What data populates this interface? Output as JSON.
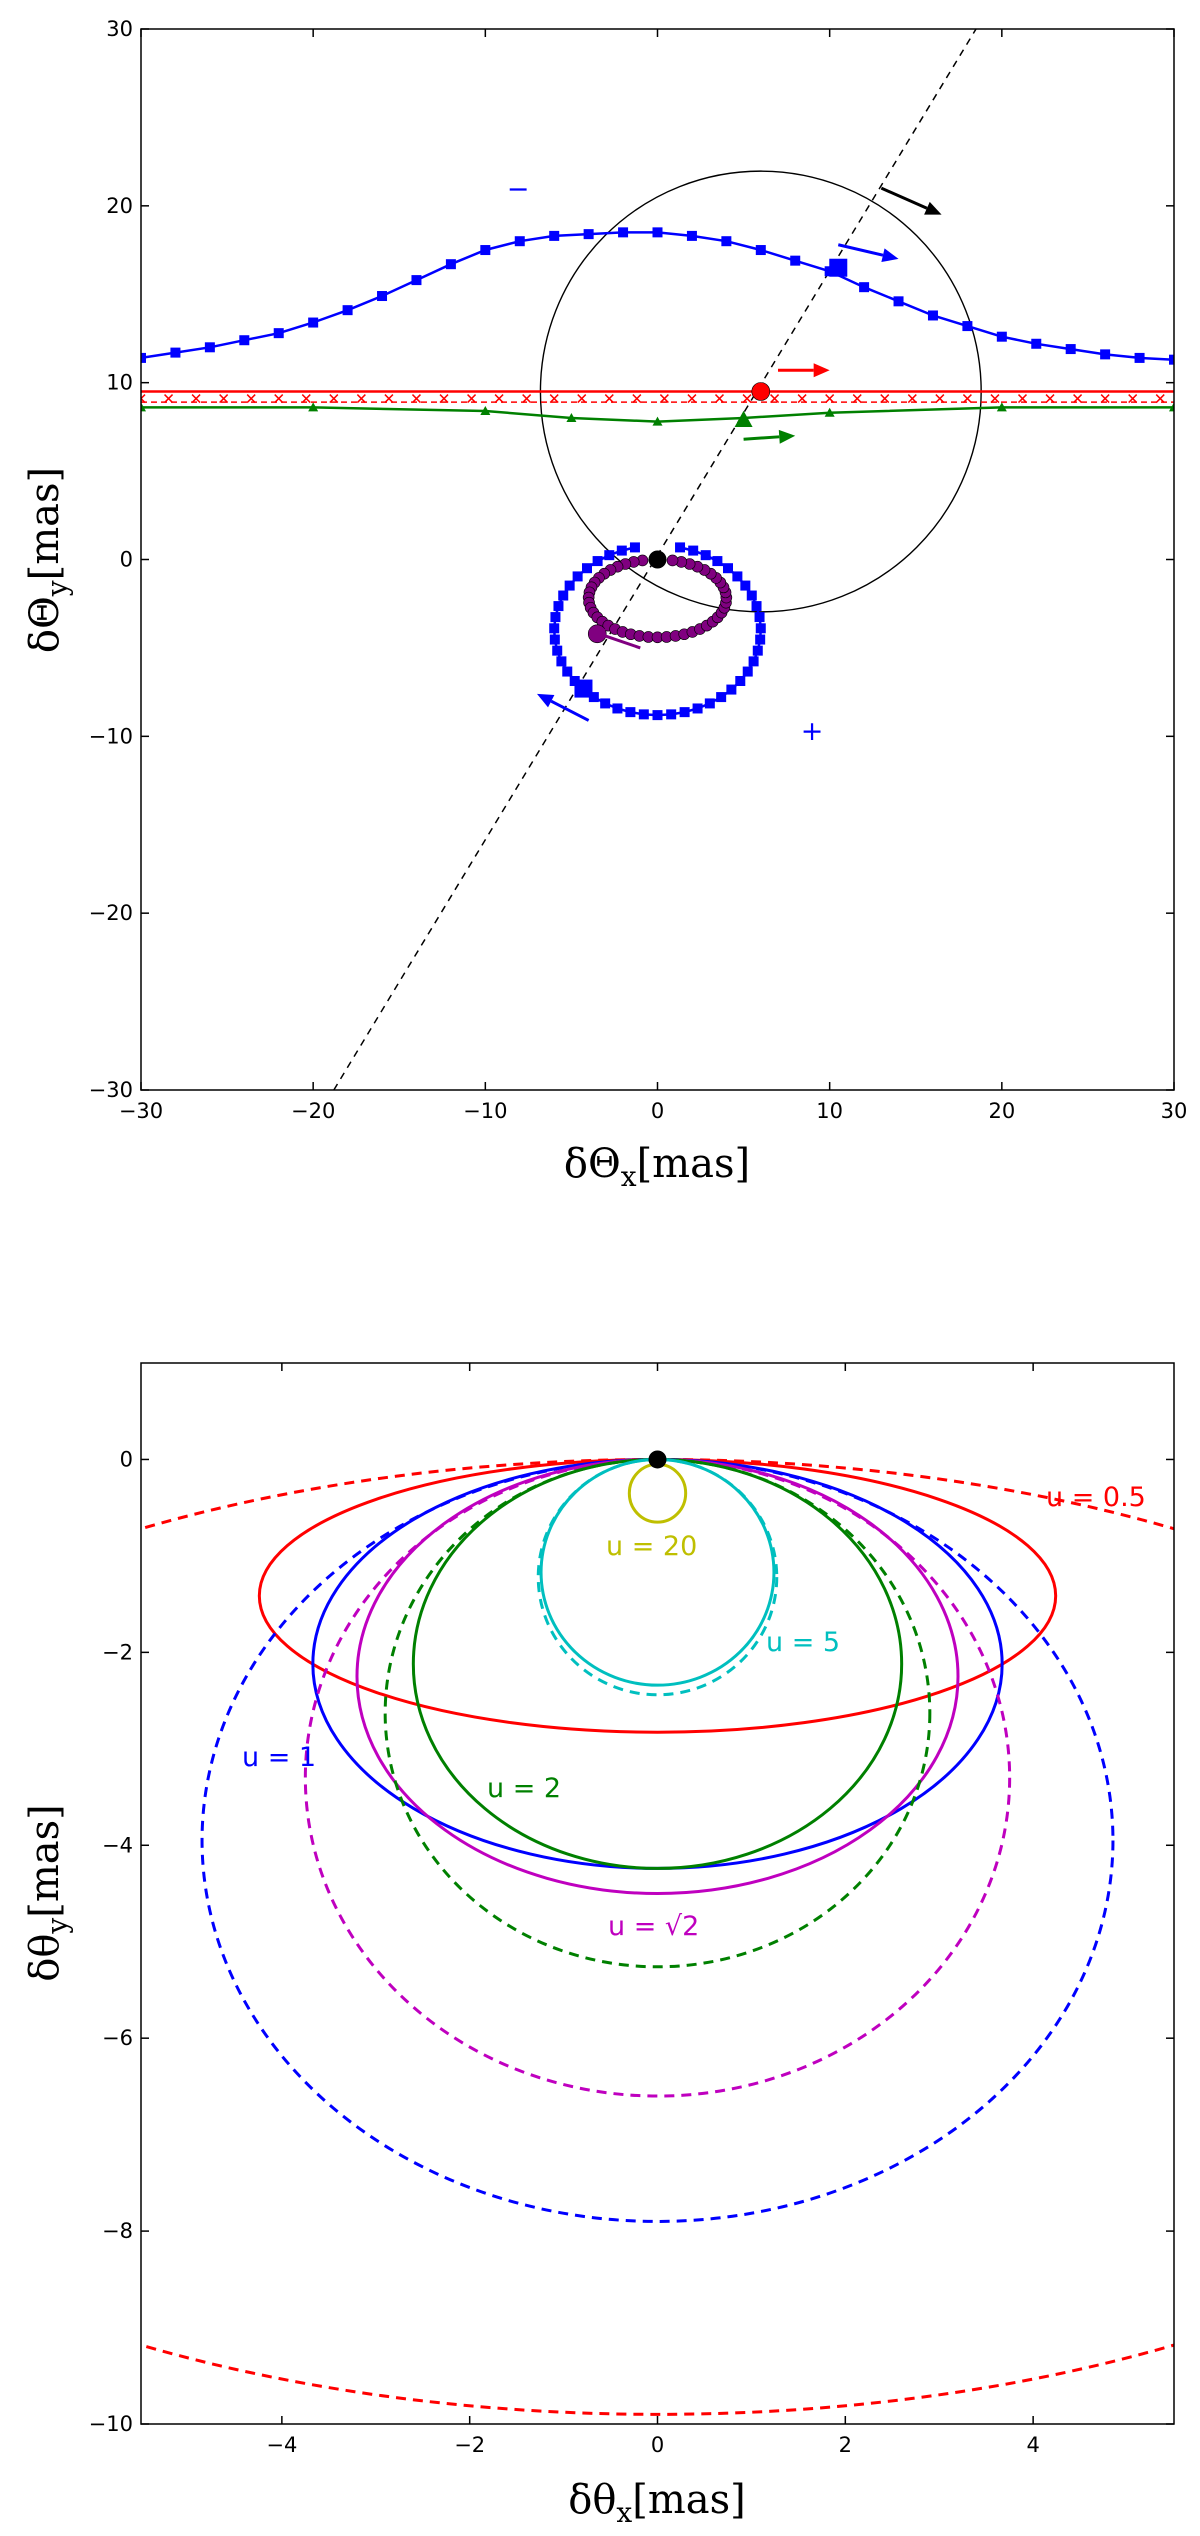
{
  "chart_data": [
    {
      "type": "line",
      "xlabel": "δΘ_x [mas]",
      "ylabel": "δΘ_y [mas]",
      "xlim": [
        -30,
        30
      ],
      "ylim": [
        -30,
        30
      ],
      "xticks": [
        -30,
        -20,
        -10,
        0,
        10,
        20,
        30
      ],
      "yticks": [
        -30,
        -20,
        -10,
        0,
        10,
        20,
        30
      ],
      "grid": false,
      "lens_position": [
        0,
        0
      ],
      "sign_labels": {
        "minus": "−",
        "plus": "+"
      },
      "circle": {
        "center": [
          6,
          9.5
        ],
        "radius": 12.8,
        "color": "#000000"
      },
      "lens_path_line": {
        "through": [
          [
            -18.8,
            -30
          ],
          [
            18.5,
            30
          ]
        ],
        "style": "dashed",
        "color": "#000000"
      },
      "series": [
        {
          "color": "#0000ff",
          "marker": "square",
          "curve": "major image (+)",
          "points": [
            [
              -30,
              11.4
            ],
            [
              -28,
              11.7
            ],
            [
              -26,
              12.0
            ],
            [
              -24,
              12.4
            ],
            [
              -22,
              12.8
            ],
            [
              -20,
              13.4
            ],
            [
              -18,
              14.1
            ],
            [
              -16,
              14.9
            ],
            [
              -14,
              15.8
            ],
            [
              -12,
              16.7
            ],
            [
              -10,
              17.5
            ],
            [
              -8,
              18.0
            ],
            [
              -6,
              18.3
            ],
            [
              -4,
              18.4
            ],
            [
              -2,
              18.5
            ],
            [
              0,
              18.5
            ],
            [
              2,
              18.3
            ],
            [
              4,
              18.0
            ],
            [
              6,
              17.5
            ],
            [
              8,
              16.9
            ],
            [
              10,
              16.3
            ],
            [
              12,
              15.4
            ],
            [
              14,
              14.6
            ],
            [
              16,
              13.8
            ],
            [
              18,
              13.2
            ],
            [
              20,
              12.6
            ],
            [
              22,
              12.2
            ],
            [
              24,
              11.9
            ],
            [
              26,
              11.6
            ],
            [
              28,
              11.4
            ],
            [
              30,
              11.3
            ]
          ]
        },
        {
          "color": "#ff0000",
          "marker": "x",
          "curve": "unlensed source",
          "points": [
            [
              -30,
              9.5
            ],
            [
              30,
              9.5
            ]
          ]
        },
        {
          "color": "#008000",
          "marker": "triangle",
          "curve": "centroid",
          "points": [
            [
              -30,
              8.6
            ],
            [
              -20,
              8.6
            ],
            [
              -10,
              8.4
            ],
            [
              -5,
              8.0
            ],
            [
              0,
              7.8
            ],
            [
              5,
              8.0
            ],
            [
              10,
              8.3
            ],
            [
              20,
              8.6
            ],
            [
              30,
              8.6
            ]
          ]
        },
        {
          "color": "#0000ff",
          "marker": "square",
          "curve": "minor image (−)",
          "loop": {
            "center": [
              0,
              -4.0
            ],
            "rx": 6.0,
            "ry": 4.8
          }
        },
        {
          "color": "#800080",
          "marker": "circle",
          "curve": "minor image inner",
          "loop": {
            "center": [
              0,
              -2.2
            ],
            "rx": 4.0,
            "ry": 2.2
          }
        }
      ],
      "highlight_points": [
        {
          "series": "unlensed source",
          "x": 6,
          "y": 9.5
        },
        {
          "series": "major image (+)",
          "x": 10.5,
          "y": 16.5
        },
        {
          "series": "centroid",
          "x": 5,
          "y": 7.9
        },
        {
          "series": "minor image (−)",
          "x": -4.3,
          "y": -7.3
        },
        {
          "series": "minor image inner",
          "x": -3.5,
          "y": -4.2
        }
      ],
      "motion_arrows": [
        {
          "color": "#000000",
          "from": [
            13,
            21
          ],
          "to": [
            16.5,
            19.5
          ]
        },
        {
          "color": "#0000ff",
          "from": [
            10.5,
            17.8
          ],
          "to": [
            14,
            17.0
          ]
        },
        {
          "color": "#ff0000",
          "from": [
            7,
            10.7
          ],
          "to": [
            10,
            10.7
          ]
        },
        {
          "color": "#008000",
          "from": [
            5,
            6.8
          ],
          "to": [
            8,
            7.0
          ]
        },
        {
          "color": "#800080",
          "from": [
            -1,
            -5.0
          ],
          "to": [
            -4,
            -4.0
          ]
        },
        {
          "color": "#0000ff",
          "from": [
            -4,
            -9.1
          ],
          "to": [
            -7,
            -7.6
          ]
        }
      ]
    },
    {
      "type": "line",
      "xlabel": "δθ_x [mas]",
      "ylabel": "δθ_y [mas]",
      "xlim": [
        -5.5,
        5.5
      ],
      "ylim": [
        -10,
        1
      ],
      "xticks": [
        -4,
        -2,
        0,
        2,
        4
      ],
      "yticks": [
        -10,
        -8,
        -6,
        -4,
        -2,
        0
      ],
      "grid": false,
      "lens_position": [
        0,
        0
      ],
      "series": [
        {
          "name": "u = 0.5",
          "color": "#ff0000",
          "solid": {
            "center": [
              0,
              -1.414
            ],
            "rx": 4.24,
            "ry": 1.414
          },
          "dashed": {
            "center": [
              0,
              -4.95
            ],
            "rx": 10.6,
            "ry": 4.95
          }
        },
        {
          "name": "u = 1",
          "color": "#0000ff",
          "solid": {
            "center": [
              0,
              -2.12
            ],
            "rx": 3.67,
            "ry": 2.12
          },
          "dashed": {
            "center": [
              0,
              -3.95
            ],
            "rx": 4.85,
            "ry": 3.95
          }
        },
        {
          "name": "u = √2",
          "color": "#bf00bf",
          "solid": {
            "center": [
              0,
              -2.25
            ],
            "rx": 3.2,
            "ry": 2.25
          },
          "dashed": {
            "center": [
              0,
              -3.3
            ],
            "rx": 3.75,
            "ry": 3.3
          }
        },
        {
          "name": "u = 2",
          "color": "#008000",
          "solid": {
            "center": [
              0,
              -2.12
            ],
            "rx": 2.6,
            "ry": 2.12
          },
          "dashed": {
            "center": [
              0,
              -2.63
            ],
            "rx": 2.9,
            "ry": 2.63
          }
        },
        {
          "name": "u = 5",
          "color": "#00bfbf",
          "solid": {
            "center": [
              0,
              -1.17
            ],
            "rx": 1.24,
            "ry": 1.17
          },
          "dashed": {
            "center": [
              0,
              -1.22
            ],
            "rx": 1.27,
            "ry": 1.22
          }
        },
        {
          "name": "u = 20",
          "color": "#bfbf00",
          "solid": {
            "center": [
              0,
              -0.35
            ],
            "rx": 0.3,
            "ry": 0.3
          },
          "dashed": null
        }
      ]
    }
  ]
}
